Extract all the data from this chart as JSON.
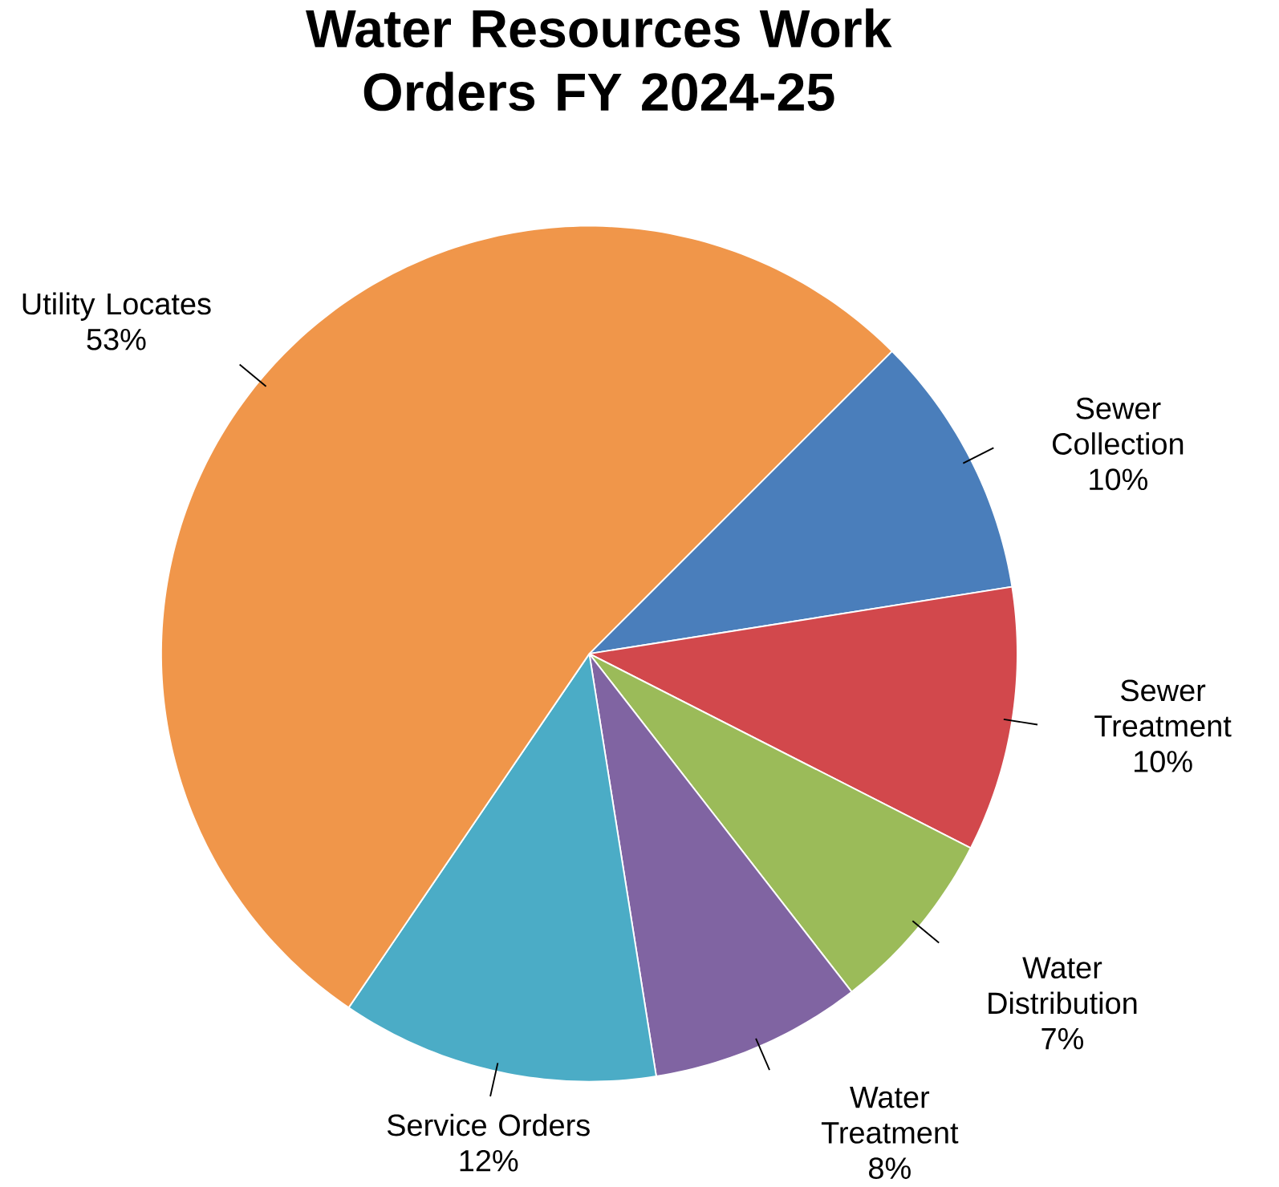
{
  "chart_data": {
    "type": "pie",
    "title": "Water Resources Work Orders FY 2024-25",
    "categories": [
      "Sewer Collection",
      "Sewer Treatment",
      "Water Distribution",
      "Water Treatment",
      "Service Orders",
      "Utility Locates"
    ],
    "values": [
      10,
      10,
      7,
      8,
      12,
      53
    ],
    "value_labels": [
      "10%",
      "10%",
      "7%",
      "8%",
      "12%",
      "53%"
    ],
    "colors": [
      "#4a7ebb",
      "#d2484c",
      "#9bbb59",
      "#8064a2",
      "#4bacc6",
      "#f0964a"
    ]
  }
}
